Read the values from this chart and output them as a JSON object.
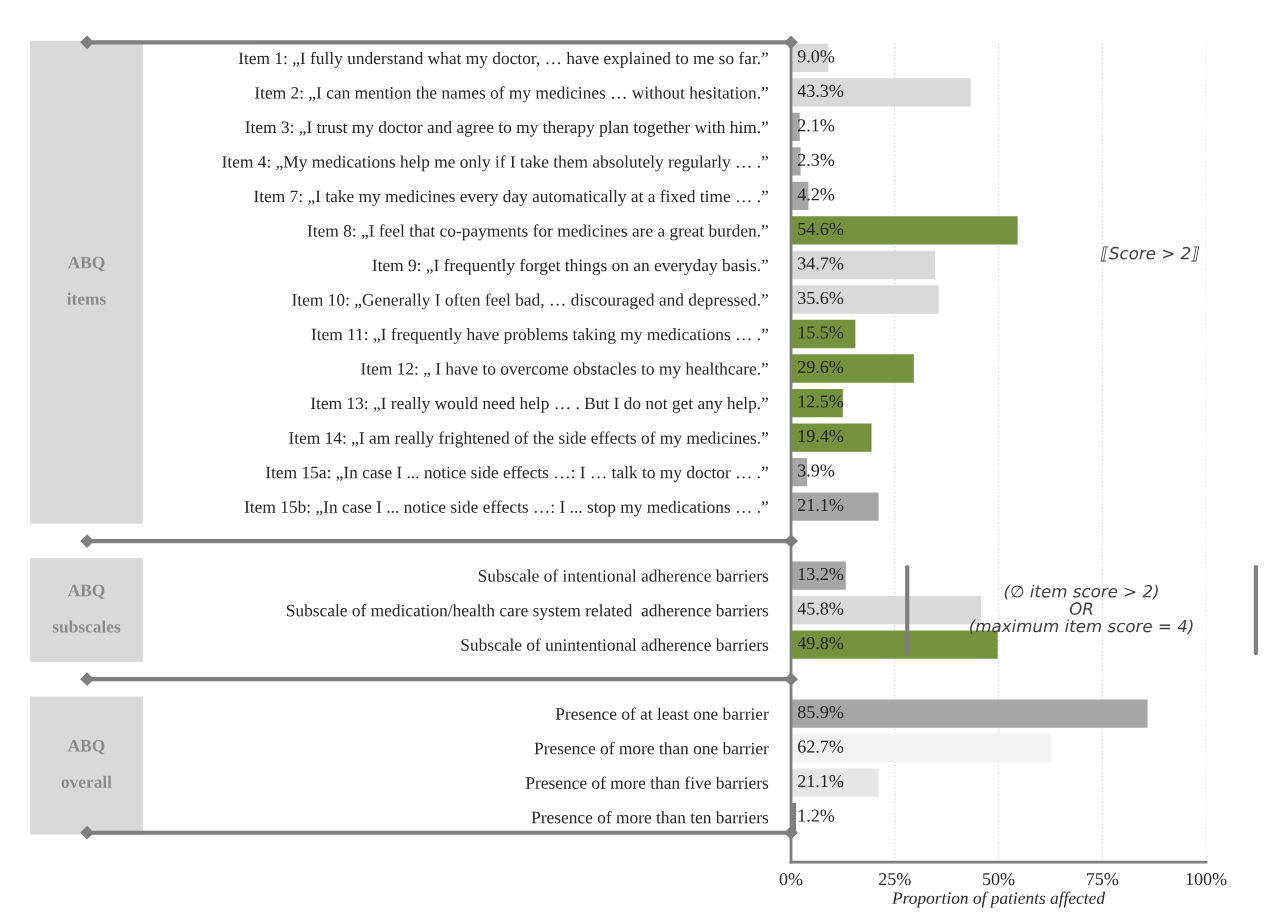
{
  "chart_data": {
    "type": "bar",
    "orientation": "horizontal",
    "categories": [
      "Item 1: „I fully understand what my doctor, … have explained to me so far.”",
      "Item 2: „I can mention the names of my medicines … without hesitation.”",
      "Item 3: „I trust my doctor and agree to my therapy plan together with him.”",
      "Item 4: „My medications help me only if I take them absolutely regularly … .”",
      "Item 7: „I take my medicines every day automatically at a fixed time … .”",
      "Item 8: „I feel that co-payments for medicines are a great burden.”",
      "Item 9: „I frequently forget things on an everyday basis.”",
      "Item 10: „Generally I often feel bad, … discouraged and depressed.”",
      "Item 11: „I frequently have problems taking my medications … .”",
      "Item 12: „ I have to overcome obstacles to my healthcare.”",
      "Item 13: „I really would need help … . But I do not get any help.”",
      "Item 14: „I am really frightened of the side effects of my medicines.”",
      "Item 15a: „In case I ... notice side effects …: I … talk to my doctor … .”",
      "Item 15b: „In case I ... notice side effects …: I ... stop my medications … .”",
      null,
      "Subscale of intentional adherence barriers",
      "Subscale of medication/health care system related  adherence barriers",
      "Subscale of unintentional adherence barriers",
      null,
      "Presence of at least one barrier",
      "Presence of more than one barrier",
      "Presence of more than five barriers",
      "Presence of more than ten barriers"
    ],
    "values": [
      9.0,
      43.3,
      2.1,
      2.3,
      4.2,
      54.6,
      34.7,
      35.6,
      15.5,
      29.6,
      12.5,
      19.4,
      3.9,
      21.1,
      null,
      13.2,
      45.8,
      49.8,
      null,
      85.9,
      62.7,
      21.1,
      1.2
    ],
    "colors": [
      "#d9d9d9",
      "#d9d9d9",
      "#a6a6a6",
      "#a6a6a6",
      "#a6a6a6",
      "#76923c",
      "#d9d9d9",
      "#d9d9d9",
      "#76923c",
      "#76923c",
      "#76923c",
      "#76923c",
      "#a6a6a6",
      "#a6a6a6",
      null,
      "#a6a6a6",
      "#d9d9d9",
      "#76923c",
      null,
      "#a6a6a6",
      "#f2f2f2",
      "#e6e6e6",
      "#7f7f7f"
    ],
    "value_labels": [
      "9.0%",
      "43.3%",
      "2.1%",
      "2.3%",
      "4.2%",
      "54.6%",
      "34.7%",
      "35.6%",
      "15.5%",
      "29.6%",
      "12.5%",
      "19.4%",
      "3.9%",
      "21.1%",
      null,
      "13.2%",
      "45.8%",
      "49.8%",
      null,
      "85.9%",
      "62.7%",
      "21.1%",
      "1.2%"
    ],
    "xlim": [
      0,
      100
    ],
    "xticks": [
      {
        "value": 0,
        "label": "0%"
      },
      {
        "value": 25,
        "label": "25%"
      },
      {
        "value": 50,
        "label": "50%"
      },
      {
        "value": 75,
        "label": "75%"
      },
      {
        "value": 100,
        "label": "100%"
      }
    ],
    "xlabel": "Proportion of patients affected",
    "grid": "x",
    "annotations": [
      "ABQ\n\nitems",
      "ABQ\n\nsubscales",
      "ABQ\n\noverall",
      "⟦Score > 2⟧",
      "(∅ item score > 2)\nOR\n(maximum item score = 4)"
    ]
  }
}
